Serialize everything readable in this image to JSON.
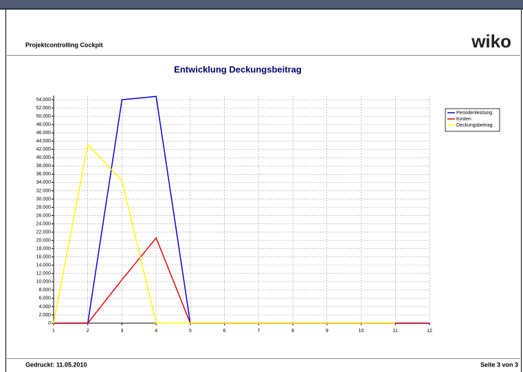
{
  "header": {
    "title": "Projektcontrolling Cockpit",
    "logo": "wiko"
  },
  "footer": {
    "printed": "Gedruckt:  11.05.2010",
    "page": "Seite 3 von 3"
  },
  "chart_data": {
    "type": "line",
    "title": "Entwicklung Deckungsbeitrag",
    "x": [
      1,
      2,
      3,
      4,
      5,
      6,
      7,
      8,
      9,
      10,
      11,
      12
    ],
    "xlim": [
      1,
      12
    ],
    "xticks": [
      1,
      2,
      3,
      4,
      5,
      6,
      7,
      8,
      9,
      10,
      11,
      12
    ],
    "ylim": [
      0,
      55000
    ],
    "yticks": [
      0,
      {
        "value": 2000,
        "label": "2.000"
      },
      {
        "value": 4000,
        "label": "4.000"
      },
      {
        "value": 6000,
        "label": "6.000"
      },
      {
        "value": 8000,
        "label": "8.000"
      },
      {
        "value": 10000,
        "label": "10.000"
      },
      {
        "value": 12000,
        "label": "12.000"
      },
      {
        "value": 14000,
        "label": "14.000"
      },
      {
        "value": 16000,
        "label": "16.000"
      },
      {
        "value": 18000,
        "label": "18.000"
      },
      {
        "value": 20000,
        "label": "20.000"
      },
      {
        "value": 22000,
        "label": "22.000"
      },
      {
        "value": 24000,
        "label": "24.000"
      },
      {
        "value": 26000,
        "label": "26.000"
      },
      {
        "value": 28000,
        "label": "28.000"
      },
      {
        "value": 30000,
        "label": "30.000"
      },
      {
        "value": 32000,
        "label": "32.000"
      },
      {
        "value": 34000,
        "label": "34.000"
      },
      {
        "value": 36000,
        "label": "36.000"
      },
      {
        "value": 38000,
        "label": "38.000"
      },
      {
        "value": 40000,
        "label": "40.000"
      },
      {
        "value": 42000,
        "label": "42.000"
      },
      {
        "value": 44000,
        "label": "44.000"
      },
      {
        "value": 46000,
        "label": "46.000"
      },
      {
        "value": 48000,
        "label": "48.000"
      },
      {
        "value": 50000,
        "label": "50.000"
      },
      {
        "value": 52000,
        "label": "52.000"
      },
      {
        "value": 54000,
        "label": "54.000"
      }
    ],
    "grid": true,
    "legend": "upper right",
    "series": [
      {
        "name": "Periodenleistung",
        "color": "#0000cc",
        "values": [
          0,
          0,
          54000,
          54800,
          0,
          0,
          0,
          0,
          0,
          0,
          0,
          0
        ]
      },
      {
        "name": "Kosten",
        "color": "#e00000",
        "values": [
          0,
          0,
          10500,
          20600,
          0,
          0,
          0,
          0,
          0,
          0,
          0,
          0
        ]
      },
      {
        "name": "Deckungsbeitrag",
        "color": "#ffff00",
        "values": [
          0,
          43200,
          34400,
          0,
          0,
          0,
          0,
          0,
          0,
          0,
          0,
          null
        ]
      }
    ]
  }
}
